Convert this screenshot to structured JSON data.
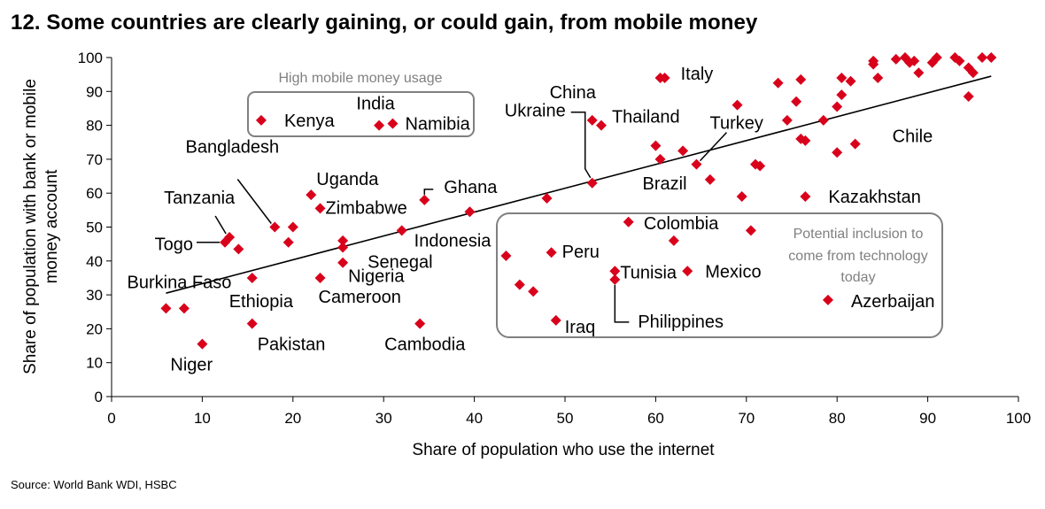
{
  "title": "12. Some countries are clearly gaining, or could gain, from mobile money",
  "source": "Source: World Bank WDI, HSBC",
  "colors": {
    "marker": "#d9001b",
    "trend": "#000000",
    "box": "#808080",
    "annotation": "#808080"
  },
  "chart_data": {
    "type": "scatter",
    "xlabel": "Share of population who use the internet",
    "ylabel": "Share of population with bank or mobile money account",
    "xlim": [
      0,
      100
    ],
    "ylim": [
      0,
      100
    ],
    "xticks": [
      0,
      10,
      20,
      30,
      40,
      50,
      60,
      70,
      80,
      90,
      100
    ],
    "yticks": [
      0,
      10,
      20,
      30,
      40,
      50,
      60,
      70,
      80,
      90,
      100
    ],
    "grid": false,
    "trendline": {
      "x": [
        6,
        97
      ],
      "y": [
        30.5,
        94.5
      ]
    },
    "annotations": {
      "high_usage": "High mobile money usage",
      "potential": [
        "Potential inclusion to",
        "come from technology",
        "today"
      ]
    },
    "labeled_points": [
      {
        "label": "Kenya",
        "x": 16.5,
        "y": 81.5
      },
      {
        "label": "India",
        "x": 29.5,
        "y": 80
      },
      {
        "label": "Namibia",
        "x": 31,
        "y": 80.5
      },
      {
        "label": "China",
        "x": 53,
        "y": 81.5
      },
      {
        "label": "Thailand",
        "x": 54,
        "y": 80
      },
      {
        "label": "Italy",
        "x": 61,
        "y": 94
      },
      {
        "label": "Turkey",
        "x": 64.5,
        "y": 68.5
      },
      {
        "label": "Chile",
        "x": 82,
        "y": 74.5
      },
      {
        "label": "Kazakhstan",
        "x": 76.5,
        "y": 59
      },
      {
        "label": "Ukraine",
        "x": 53,
        "y": 63
      },
      {
        "label": "Brazil",
        "x": 60.5,
        "y": 70
      },
      {
        "label": "Ghana",
        "x": 34.5,
        "y": 58
      },
      {
        "label": "Indonesia",
        "x": 32,
        "y": 49
      },
      {
        "label": "Colombia",
        "x": 62,
        "y": 46
      },
      {
        "label": "Peru",
        "x": 48.5,
        "y": 42.5
      },
      {
        "label": "Tunisia",
        "x": 55.5,
        "y": 37
      },
      {
        "label": "Philippines",
        "x": 55.5,
        "y": 34.5
      },
      {
        "label": "Mexico",
        "x": 63.5,
        "y": 37
      },
      {
        "label": "Iraq",
        "x": 49,
        "y": 22.5
      },
      {
        "label": "Azerbaijan",
        "x": 79,
        "y": 28.5
      },
      {
        "label": "Bangladesh",
        "x": 18,
        "y": 50
      },
      {
        "label": "Tanzania",
        "x": 13,
        "y": 47
      },
      {
        "label": "Togo",
        "x": 12.5,
        "y": 45.5
      },
      {
        "label": "Burkina Faso",
        "x": 14,
        "y": 43.5
      },
      {
        "label": "Uganda",
        "x": 22,
        "y": 59.5
      },
      {
        "label": "Zimbabwe",
        "x": 23,
        "y": 55.5
      },
      {
        "label": "Senegal",
        "x": 25.5,
        "y": 44
      },
      {
        "label": "Nigeria",
        "x": 25.5,
        "y": 39.5
      },
      {
        "label": "Cameroon",
        "x": 23,
        "y": 35
      },
      {
        "label": "Ethiopia",
        "x": 15.5,
        "y": 35
      },
      {
        "label": "Pakistan",
        "x": 15.5,
        "y": 21.5
      },
      {
        "label": "Cambodia",
        "x": 34,
        "y": 21.5
      },
      {
        "label": "Niger",
        "x": 10,
        "y": 15.5
      }
    ],
    "other_points": [
      {
        "x": 6,
        "y": 26
      },
      {
        "x": 8,
        "y": 26
      },
      {
        "x": 20,
        "y": 50
      },
      {
        "x": 19.5,
        "y": 45.5
      },
      {
        "x": 25.5,
        "y": 46
      },
      {
        "x": 39.5,
        "y": 54.5
      },
      {
        "x": 43.5,
        "y": 41.5
      },
      {
        "x": 45,
        "y": 33
      },
      {
        "x": 46.5,
        "y": 31
      },
      {
        "x": 48,
        "y": 58.5
      },
      {
        "x": 57,
        "y": 51.5
      },
      {
        "x": 60,
        "y": 74
      },
      {
        "x": 60.5,
        "y": 94
      },
      {
        "x": 63,
        "y": 72.5
      },
      {
        "x": 66,
        "y": 64
      },
      {
        "x": 69,
        "y": 86
      },
      {
        "x": 69.5,
        "y": 59
      },
      {
        "x": 71,
        "y": 68.5
      },
      {
        "x": 71.5,
        "y": 68
      },
      {
        "x": 70.5,
        "y": 49
      },
      {
        "x": 73.5,
        "y": 92.5
      },
      {
        "x": 74.5,
        "y": 81.5
      },
      {
        "x": 75.5,
        "y": 87
      },
      {
        "x": 76,
        "y": 93.5
      },
      {
        "x": 76,
        "y": 76
      },
      {
        "x": 76.5,
        "y": 75.5
      },
      {
        "x": 78.5,
        "y": 81.5
      },
      {
        "x": 80,
        "y": 72
      },
      {
        "x": 80,
        "y": 85.5
      },
      {
        "x": 80.5,
        "y": 94
      },
      {
        "x": 80.5,
        "y": 89
      },
      {
        "x": 81.5,
        "y": 93
      },
      {
        "x": 84,
        "y": 99
      },
      {
        "x": 84,
        "y": 98
      },
      {
        "x": 84.5,
        "y": 94
      },
      {
        "x": 86.5,
        "y": 99.5
      },
      {
        "x": 87.5,
        "y": 100
      },
      {
        "x": 88,
        "y": 98.5
      },
      {
        "x": 88.5,
        "y": 99
      },
      {
        "x": 89,
        "y": 95.5
      },
      {
        "x": 90.5,
        "y": 98.5
      },
      {
        "x": 91,
        "y": 100
      },
      {
        "x": 93,
        "y": 100
      },
      {
        "x": 93.5,
        "y": 99
      },
      {
        "x": 94.5,
        "y": 97
      },
      {
        "x": 94.5,
        "y": 88.5
      },
      {
        "x": 95,
        "y": 95.5
      },
      {
        "x": 96,
        "y": 100
      },
      {
        "x": 97,
        "y": 100
      }
    ]
  }
}
